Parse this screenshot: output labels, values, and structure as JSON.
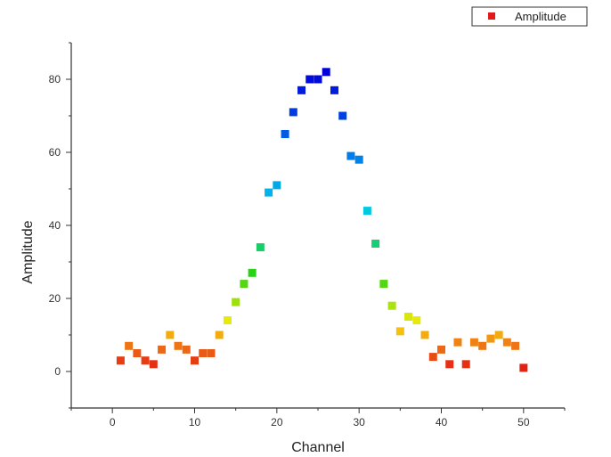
{
  "chart_data": {
    "type": "scatter",
    "xlabel": "Channel",
    "ylabel": "Amplitude",
    "xlim": [
      -5,
      55
    ],
    "ylim": [
      -10,
      90
    ],
    "x_ticks": [
      0,
      10,
      20,
      30,
      40,
      50
    ],
    "y_ticks": [
      0,
      20,
      40,
      60,
      80
    ],
    "grid": false,
    "legend_position": "top-right",
    "series": [
      {
        "name": "Amplitude",
        "legend_color": "#e01a1a",
        "x": [
          1,
          2,
          3,
          4,
          5,
          6,
          7,
          8,
          9,
          10,
          11,
          12,
          13,
          14,
          15,
          16,
          17,
          18,
          19,
          20,
          21,
          22,
          23,
          24,
          25,
          26,
          27,
          28,
          29,
          30,
          31,
          32,
          33,
          34,
          35,
          36,
          37,
          38,
          39,
          40,
          41,
          42,
          43,
          44,
          45,
          46,
          47,
          48,
          49,
          50
        ],
        "y": [
          3,
          7,
          5,
          3,
          2,
          6,
          10,
          7,
          6,
          3,
          5,
          5,
          10,
          14,
          19,
          24,
          27,
          34,
          49,
          51,
          65,
          71,
          77,
          80,
          80,
          82,
          77,
          70,
          59,
          58,
          44,
          35,
          24,
          18,
          11,
          15,
          14,
          10,
          4,
          6,
          2,
          8,
          2,
          8,
          7,
          9,
          10,
          8,
          7,
          1
        ]
      }
    ]
  }
}
